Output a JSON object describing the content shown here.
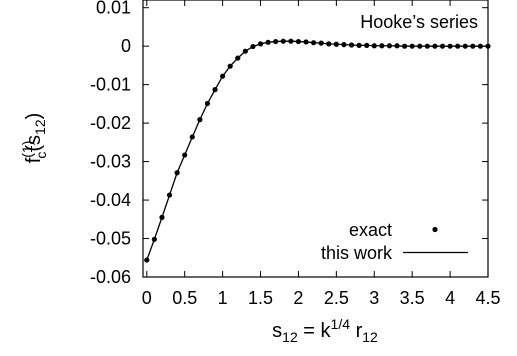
{
  "chart_data": {
    "type": "line",
    "xlim": [
      -0.05,
      4.5
    ],
    "ylim": [
      -0.06,
      0.012
    ],
    "x_ticks": [
      0,
      0.5,
      1,
      1.5,
      2,
      2.5,
      3,
      3.5,
      4,
      4.5
    ],
    "x_tick_labels": [
      "0",
      "0.5",
      "1",
      "1.5",
      "2",
      "2.5",
      "3",
      "3.5",
      "4",
      "4.5"
    ],
    "y_ticks": [
      -0.06,
      -0.05,
      -0.04,
      -0.03,
      -0.02,
      -0.01,
      0,
      0.01
    ],
    "y_tick_labels": [
      "-0.06",
      "-0.05",
      "-0.04",
      "-0.03",
      "-0.02",
      "-0.01",
      "0",
      "0.01"
    ],
    "xlabel": {
      "base": "s",
      "sub1": "12",
      "mid": " = k",
      "sup": "1/4",
      "r": " r",
      "sub2": "12"
    },
    "ylabel": {
      "f": "f",
      "sup": "(1)",
      "sub": "c",
      "open": "(s",
      "sub2": "12",
      "close": ")"
    },
    "annotation": "Hooke’s series",
    "legend_position": "bottom-right",
    "grid": false,
    "series": [
      {
        "name": "exact",
        "style": "points",
        "color": "#000000",
        "x": [
          0.0,
          0.1,
          0.2,
          0.3,
          0.4,
          0.5,
          0.6,
          0.7,
          0.8,
          0.9,
          1.0,
          1.1,
          1.2,
          1.3,
          1.4,
          1.5,
          1.6,
          1.7,
          1.8,
          1.9,
          2.0,
          2.1,
          2.2,
          2.3,
          2.4,
          2.5,
          2.6,
          2.7,
          2.8,
          2.9,
          3.0,
          3.1,
          3.2,
          3.3,
          3.4,
          3.5,
          3.6,
          3.7,
          3.8,
          3.9,
          4.0,
          4.1,
          4.2,
          4.3,
          4.4,
          4.5
        ],
        "y": [
          -0.0556,
          -0.0502,
          -0.0445,
          -0.0387,
          -0.0329,
          -0.0283,
          -0.0236,
          -0.0191,
          -0.0149,
          -0.0113,
          -0.0078,
          -0.0052,
          -0.0031,
          -0.0013,
          -0.0001,
          0.0006,
          0.001,
          0.0012,
          0.0013,
          0.0013,
          0.0012,
          0.0011,
          0.0009,
          0.0008,
          0.0006,
          0.0005,
          0.0004,
          0.0003,
          0.0002,
          0.0002,
          0.0001,
          0.0001,
          0.0001,
          0.0001,
          0.0,
          0.0,
          0.0,
          0.0,
          0.0,
          0.0,
          0.0,
          0.0,
          0.0,
          0.0,
          0.0,
          0.0
        ]
      },
      {
        "name": "this work",
        "style": "line",
        "color": "#000000",
        "x": [
          0.0,
          0.1,
          0.2,
          0.3,
          0.4,
          0.5,
          0.6,
          0.7,
          0.8,
          0.9,
          1.0,
          1.1,
          1.2,
          1.3,
          1.4,
          1.5,
          1.6,
          1.7,
          1.8,
          1.9,
          2.0,
          2.1,
          2.2,
          2.3,
          2.4,
          2.5,
          2.6,
          2.7,
          2.8,
          2.9,
          3.0,
          3.2,
          3.4,
          3.6,
          3.8,
          4.0,
          4.2,
          4.4,
          4.5
        ],
        "y": [
          -0.0556,
          -0.0502,
          -0.0445,
          -0.0387,
          -0.0329,
          -0.0283,
          -0.0236,
          -0.0191,
          -0.0149,
          -0.0113,
          -0.0078,
          -0.0052,
          -0.0031,
          -0.0013,
          -0.0001,
          0.0006,
          0.001,
          0.0012,
          0.0013,
          0.0013,
          0.0012,
          0.0011,
          0.0009,
          0.0008,
          0.0006,
          0.0005,
          0.0004,
          0.0003,
          0.0002,
          0.0002,
          0.0001,
          0.0001,
          0.0,
          0.0,
          0.0,
          0.0,
          0.0,
          0.0,
          0.0
        ]
      }
    ]
  }
}
